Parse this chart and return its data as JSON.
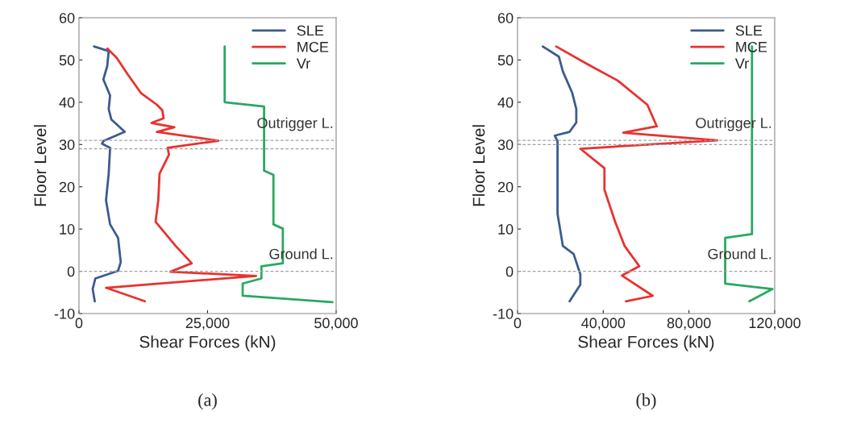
{
  "chart_data": [
    {
      "type": "line",
      "xlabel": "Shear Forces (kN)",
      "ylabel": "Floor Level",
      "xlim": [
        0,
        50000
      ],
      "ylim": [
        -10,
        60
      ],
      "xticks": [
        0,
        {
          "value": 25000,
          "label": "25,000"
        },
        {
          "value": 50000,
          "label": "50,000"
        }
      ],
      "yticks": [
        -10,
        0,
        10,
        20,
        30,
        40,
        50,
        60
      ],
      "legend": "top right",
      "grid": false,
      "ref_lines": [
        {
          "axis": "y",
          "value": 31,
          "label": "Outrigger L.",
          "color": "#a0a0a0",
          "line_style": "dashed"
        },
        {
          "axis": "y",
          "value": 29,
          "label": null,
          "color": "#a0a0a0",
          "line_style": "dashed"
        },
        {
          "axis": "y",
          "value": 0,
          "label": "Ground L.",
          "color": "#a0a0a0",
          "line_style": "dashed"
        }
      ],
      "annotations": [
        "(a)"
      ],
      "series": [
        {
          "name": "SLE",
          "color": "#3b5b8c",
          "x": [
            2920,
            5780,
            5500,
            4740,
            6050,
            5780,
            6300,
            8900,
            4740,
            4480,
            6050,
            5780,
            5260,
            6050,
            7600,
            8120,
            7600,
            3180,
            2660,
            3070
          ],
          "values": [
            53.2,
            52.1,
            48.6,
            45.4,
            41.6,
            38.4,
            35.9,
            33.0,
            30.8,
            30.2,
            29.2,
            23.1,
            16.8,
            11.1,
            7.9,
            2.2,
            0.1,
            -1.7,
            -4.2,
            -7.1
          ]
        },
        {
          "name": "MCE",
          "color": "#e8322f",
          "x": [
            5520,
            7340,
            9420,
            12030,
            15160,
            16200,
            16450,
            14110,
            18550,
            15160,
            27140,
            17240,
            17500,
            15670,
            15420,
            14890,
            18800,
            21920,
            17770,
            34420,
            5260,
            12810
          ],
          "values": [
            52.7,
            50.5,
            46.7,
            42.2,
            39.4,
            38.1,
            36.2,
            35.1,
            34.1,
            33.0,
            30.9,
            29.2,
            27.6,
            23.1,
            16.8,
            11.7,
            6.0,
            1.9,
            -0.1,
            -1.1,
            -3.9,
            -7.1
          ]
        },
        {
          "name": "Vr",
          "color": "#2aa862",
          "x": [
            28330,
            28330,
            35990,
            35990,
            37810,
            37810,
            39640,
            39640,
            35470,
            35470,
            31830,
            31830,
            49270
          ],
          "values": [
            53.2,
            40.0,
            39.0,
            23.8,
            22.8,
            11.1,
            10.1,
            1.9,
            1.2,
            -1.7,
            -2.9,
            -5.8,
            -7.3
          ]
        }
      ]
    },
    {
      "type": "line",
      "xlabel": "Shear Forces (kN)",
      "ylabel": "Floor Level",
      "xlim": [
        0,
        120000
      ],
      "ylim": [
        -10,
        60
      ],
      "xticks": [
        0,
        {
          "value": 40000,
          "label": "40,000"
        },
        {
          "value": 80000,
          "label": "80,000"
        },
        {
          "value": 120000,
          "label": "120,000"
        }
      ],
      "yticks": [
        -10,
        0,
        10,
        20,
        30,
        40,
        50,
        60
      ],
      "legend": "top right",
      "grid": false,
      "ref_lines": [
        {
          "axis": "y",
          "value": 31,
          "label": "Outrigger L.",
          "color": "#a0a0a0",
          "line_style": "dashed"
        },
        {
          "axis": "y",
          "value": 30,
          "label": null,
          "color": "#a0a0a0",
          "line_style": "dashed"
        },
        {
          "axis": "y",
          "value": 0,
          "label": "Ground L.",
          "color": "#a0a0a0",
          "line_style": "dashed"
        }
      ],
      "annotations": [
        "(b)"
      ],
      "series": [
        {
          "name": "SLE",
          "color": "#3b5b8c",
          "x": [
            11770,
            19270,
            21150,
            25540,
            27420,
            27420,
            24300,
            17390,
            18670,
            18670,
            18670,
            21150,
            26180,
            29300,
            29300,
            24300
          ],
          "values": [
            53.2,
            50.8,
            47.3,
            42.2,
            38.4,
            35.2,
            33.0,
            32.1,
            30.8,
            23.1,
            13.6,
            6.0,
            4.1,
            -0.7,
            -3.2,
            -7.1
          ]
        },
        {
          "name": "MCE",
          "color": "#e8322f",
          "x": [
            18030,
            33050,
            46840,
            60590,
            64980,
            49320,
            93150,
            29300,
            40560,
            40560,
            45560,
            49950,
            56830,
            48720,
            63100,
            50590
          ],
          "values": [
            53.2,
            48.9,
            45.1,
            39.4,
            34.3,
            32.8,
            31.0,
            29.0,
            24.4,
            19.3,
            11.7,
            6.0,
            1.2,
            -1.0,
            -5.8,
            -7.1
          ]
        },
        {
          "name": "Vr",
          "color": "#2aa862",
          "x": [
            109400,
            109400,
            96900,
            96900,
            119000,
            108200
          ],
          "values": [
            53.2,
            8.8,
            7.9,
            -2.9,
            -4.2,
            -7.1
          ]
        }
      ]
    }
  ]
}
